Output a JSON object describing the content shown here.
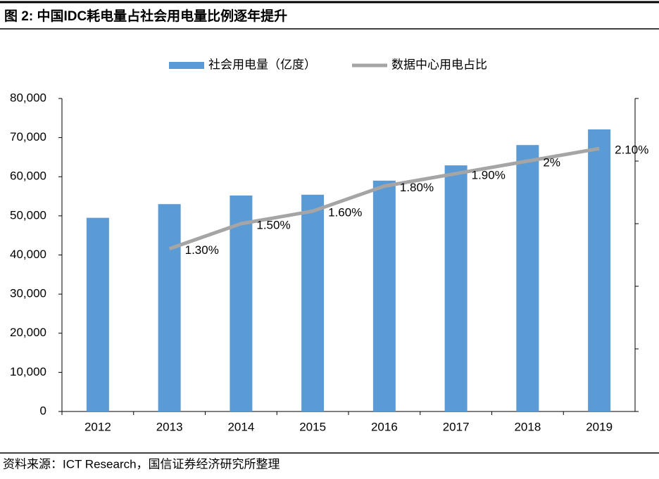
{
  "header": {
    "title": "图 2:  中国IDC耗电量占社会用电量比例逐年提升"
  },
  "chart_data": {
    "type": "bar-line",
    "categories": [
      "2012",
      "2013",
      "2014",
      "2015",
      "2016",
      "2017",
      "2018",
      "2019"
    ],
    "series": [
      {
        "name": "社会用电量（亿度）",
        "type": "bar",
        "color": "#5b9bd5",
        "values": [
          49500,
          53000,
          55200,
          55400,
          59000,
          62900,
          68100,
          72100
        ]
      },
      {
        "name": "数据中心用电占比",
        "type": "line",
        "axis": "y2",
        "color": "#a5a5a5",
        "values": [
          null,
          1.3,
          1.5,
          1.6,
          1.8,
          1.9,
          2,
          2.1
        ],
        "value_labels": [
          null,
          "1.30%",
          "1.50%",
          "1.60%",
          "1.80%",
          "1.90%",
          "2%",
          "2.10%"
        ]
      }
    ],
    "ylim": [
      0,
      80000
    ],
    "yticks": [
      0,
      {
        "value": 10000,
        "label": "10,000"
      },
      {
        "value": 20000,
        "label": "20,000"
      },
      {
        "value": 30000,
        "label": "30,000"
      },
      {
        "value": 40000,
        "label": "40,000"
      },
      {
        "value": 50000,
        "label": "50,000"
      },
      {
        "value": 60000,
        "label": "60,000"
      },
      {
        "value": 70000,
        "label": "70,000"
      },
      {
        "value": 80000,
        "label": "80,000"
      }
    ],
    "y2lim": [
      0,
      2.5
    ],
    "y2ticks": [
      0,
      0.5,
      1,
      1.5,
      2,
      2.5
    ],
    "legend": "top",
    "grid": false
  },
  "footer": {
    "source": "资料来源：ICT Research，国信证券经济研究所整理"
  }
}
